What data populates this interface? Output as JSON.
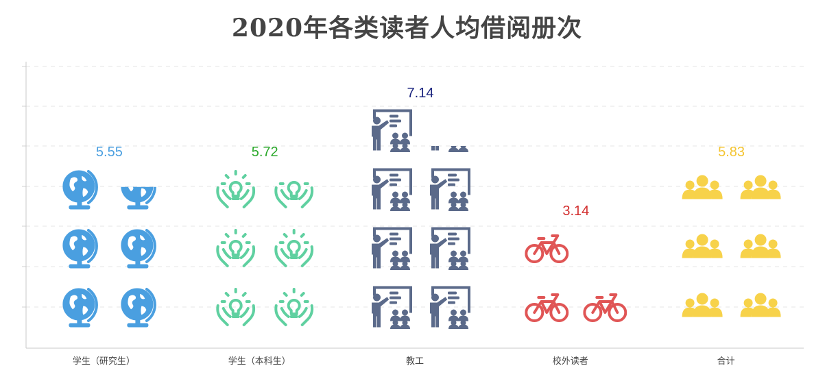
{
  "chart_data": {
    "type": "bar",
    "title": "2020年各类读者人均借阅册次",
    "xlabel": "",
    "ylabel": "",
    "categories": [
      "学生（研究生）",
      "学生（本科生）",
      "教工",
      "校外读者",
      "合计"
    ],
    "values": [
      5.55,
      5.72,
      7.14,
      3.14,
      5.83
    ],
    "value_labels": [
      "5.55",
      "5.72",
      "7.14",
      "3.14",
      "5.83"
    ],
    "icons": [
      "globe-icon",
      "lightbulb-hands-icon",
      "teacher-board-icon",
      "bicycle-icon",
      "people-group-icon"
    ],
    "colors": [
      "#4a9fe0",
      "#5fd0a0",
      "#5b6a8a",
      "#e05555",
      "#f7d24a"
    ],
    "label_colors": [
      "#4a9fe0",
      "#2aa82a",
      "#1a237e",
      "#d32f2f",
      "#f4c430"
    ],
    "units_per_icon": 1,
    "grid": true,
    "legend": "none"
  }
}
